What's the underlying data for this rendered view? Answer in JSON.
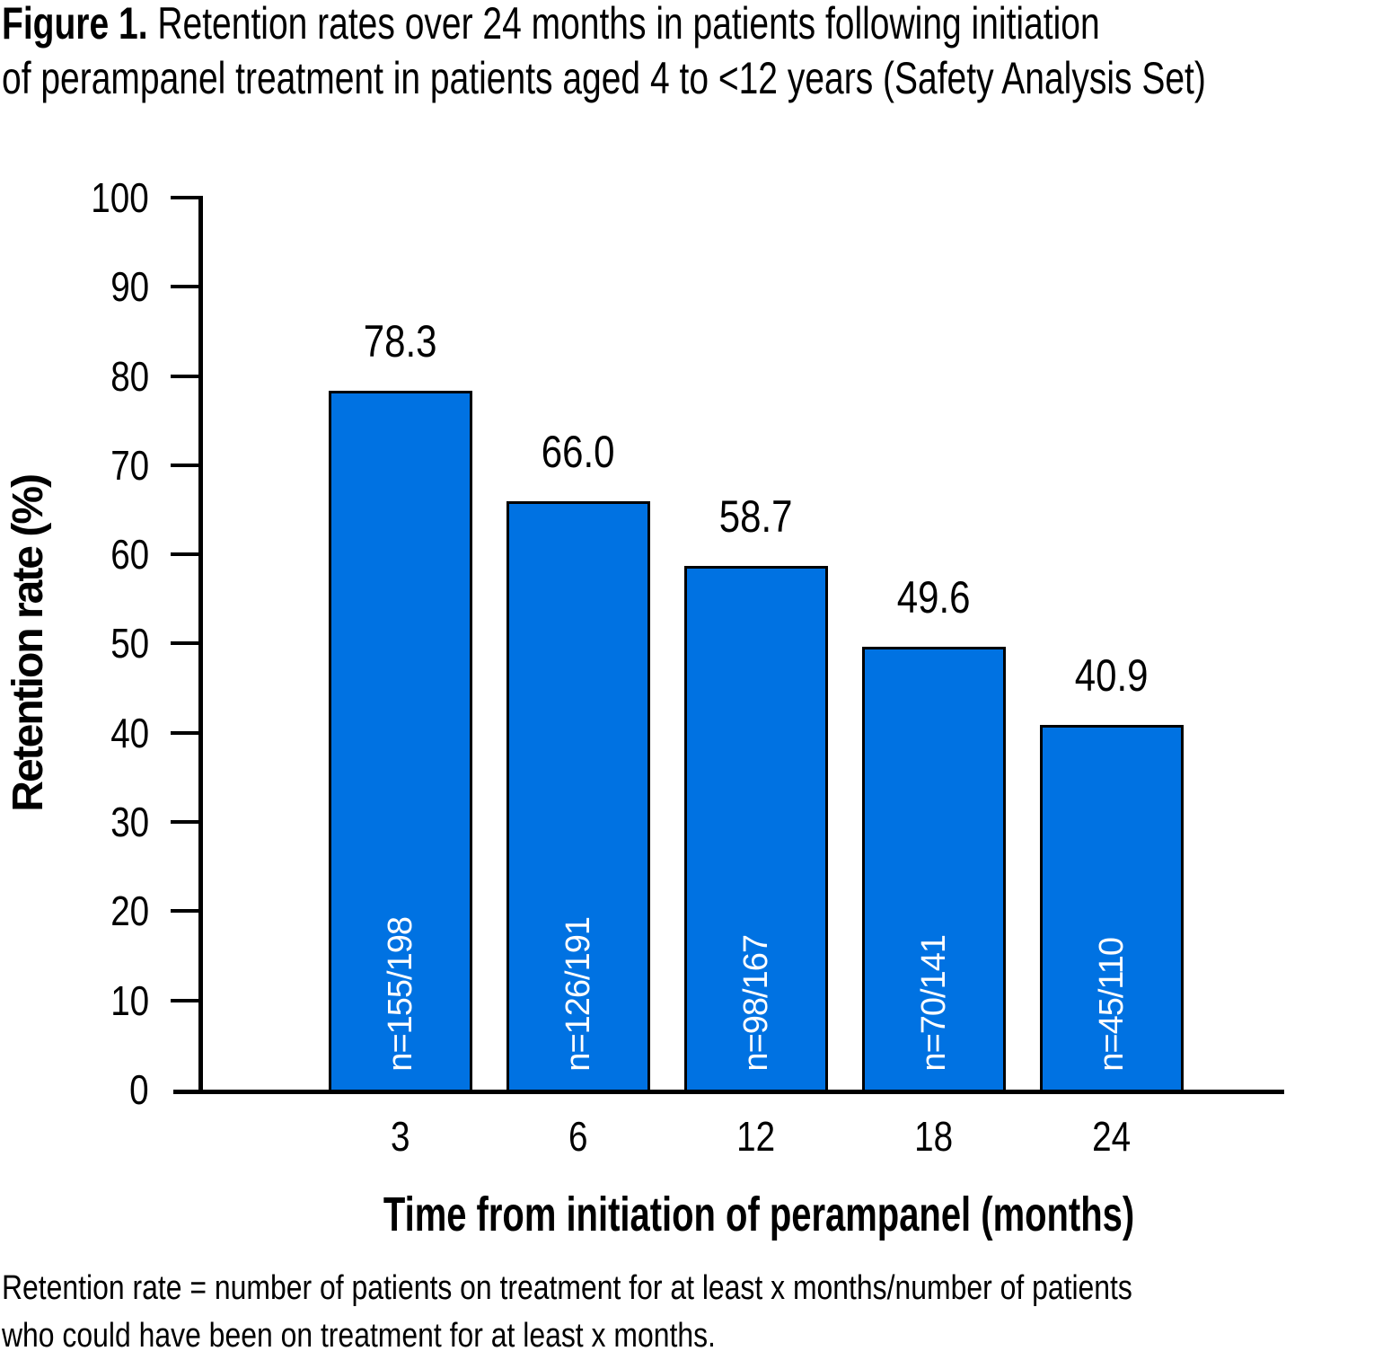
{
  "figure": {
    "title_bold": "Figure 1.",
    "title_line1_rest": " Retention rates over 24 months in patients following initiation",
    "title_line2": "of perampanel treatment in patients aged 4 to <12 years (Safety Analysis Set)",
    "footnote_line1": "Retention rate = number of patients on treatment for at least x months/number of patients",
    "footnote_line2": "who could have been on treatment for at least x months."
  },
  "chart_data": {
    "type": "bar",
    "title": "Figure 1. Retention rates over 24 months in patients following initiation of perampanel treatment in patients aged 4 to <12 years (Safety Analysis Set)",
    "categories": [
      "3",
      "6",
      "12",
      "18",
      "24"
    ],
    "values": [
      78.3,
      66.0,
      58.7,
      49.6,
      40.9
    ],
    "value_labels": [
      "78.3",
      "66.0",
      "58.7",
      "49.6",
      "40.9"
    ],
    "n_labels": [
      "n=155/198",
      "n=126/191",
      "n=98/167",
      "n=70/141",
      "n=45/110"
    ],
    "xlabel": "Time from initiation of perampanel (months)",
    "ylabel": "Retention rate (%)",
    "ylim": [
      0,
      100
    ],
    "yticks": [
      0,
      10,
      20,
      30,
      40,
      50,
      60,
      70,
      80,
      90,
      100
    ],
    "grid": false,
    "legend": "none",
    "bar_color": "#0072E2",
    "bar_border_color": "#000000",
    "n_label_color": "#FFFFFF",
    "axis_color": "#000000"
  }
}
